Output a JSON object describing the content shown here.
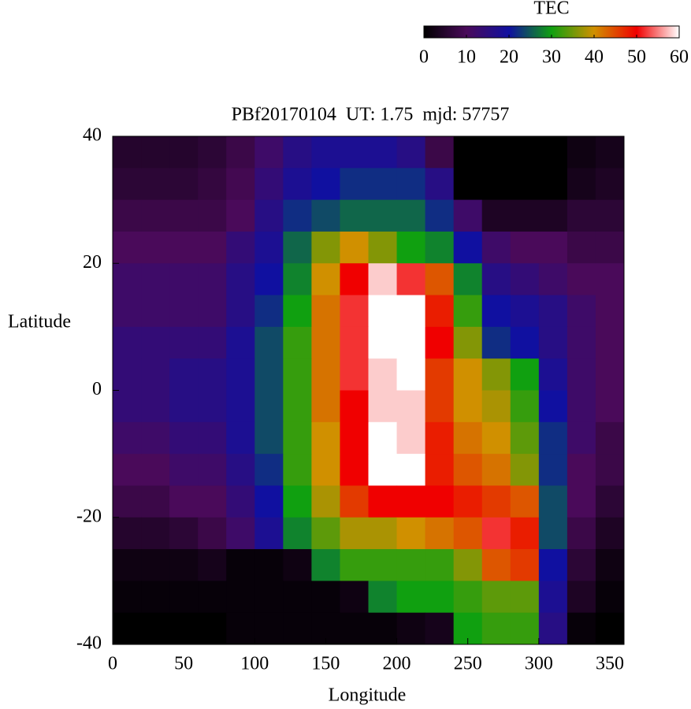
{
  "chart_data": {
    "type": "heatmap",
    "title": "PBf20170104  UT: 1.75  mjd: 57757",
    "x_label": "Longitude",
    "y_label": "Latitude",
    "colorbar_label": "TEC",
    "xlim": [
      0,
      360
    ],
    "xticks": [
      0,
      50,
      100,
      150,
      200,
      250,
      300,
      350
    ],
    "ylim": [
      -40,
      40
    ],
    "yticks": [
      -40,
      -20,
      0,
      20,
      40
    ],
    "zlim": [
      0,
      60
    ],
    "zticks": [
      0,
      10,
      20,
      30,
      40,
      50,
      60
    ],
    "colormap": [
      "#000000",
      "#4a0a5a",
      "#1010a0",
      "#10a010",
      "#d09000",
      "#f00000",
      "#ffffff"
    ],
    "x": [
      10,
      30,
      50,
      70,
      90,
      110,
      130,
      150,
      170,
      190,
      210,
      230,
      250,
      270,
      290,
      310,
      330,
      350
    ],
    "y": [
      37.5,
      32.5,
      27.5,
      22.5,
      17.5,
      12.5,
      7.5,
      2.5,
      -2.5,
      -7.5,
      -12.5,
      -17.5,
      -22.5,
      -27.5,
      -32.5,
      -37.5
    ],
    "z": [
      [
        5,
        5,
        5,
        6,
        8,
        12,
        16,
        18,
        18,
        18,
        16,
        8,
        0,
        0,
        0,
        0,
        2,
        3
      ],
      [
        6,
        6,
        6,
        7,
        9,
        14,
        18,
        20,
        22,
        22,
        22,
        16,
        0,
        0,
        0,
        0,
        3,
        4
      ],
      [
        8,
        8,
        8,
        8,
        10,
        16,
        22,
        24,
        26,
        26,
        26,
        22,
        12,
        4,
        4,
        4,
        6,
        6
      ],
      [
        10,
        10,
        10,
        10,
        14,
        18,
        26,
        36,
        40,
        36,
        30,
        28,
        20,
        12,
        10,
        10,
        8,
        8
      ],
      [
        12,
        12,
        12,
        12,
        16,
        20,
        28,
        40,
        50,
        58,
        52,
        44,
        28,
        16,
        14,
        12,
        10,
        10
      ],
      [
        12,
        12,
        12,
        12,
        16,
        22,
        30,
        42,
        52,
        60,
        60,
        48,
        32,
        20,
        18,
        16,
        12,
        10
      ],
      [
        14,
        14,
        14,
        14,
        18,
        24,
        32,
        42,
        52,
        60,
        60,
        50,
        36,
        22,
        20,
        16,
        12,
        10
      ],
      [
        14,
        14,
        16,
        16,
        18,
        24,
        32,
        42,
        52,
        58,
        60,
        46,
        40,
        36,
        30,
        18,
        12,
        10
      ],
      [
        14,
        14,
        16,
        16,
        18,
        24,
        32,
        42,
        50,
        58,
        58,
        46,
        40,
        38,
        32,
        20,
        12,
        10
      ],
      [
        12,
        12,
        14,
        14,
        18,
        24,
        32,
        40,
        50,
        60,
        58,
        48,
        42,
        40,
        34,
        22,
        12,
        8
      ],
      [
        10,
        10,
        12,
        12,
        16,
        22,
        32,
        40,
        50,
        60,
        60,
        48,
        44,
        42,
        36,
        22,
        10,
        8
      ],
      [
        8,
        8,
        10,
        10,
        14,
        20,
        30,
        38,
        46,
        50,
        50,
        50,
        48,
        46,
        44,
        24,
        10,
        6
      ],
      [
        5,
        5,
        6,
        8,
        12,
        18,
        28,
        34,
        38,
        38,
        40,
        42,
        44,
        52,
        48,
        24,
        8,
        4
      ],
      [
        2,
        2,
        2,
        3,
        1,
        1,
        2,
        28,
        32,
        32,
        32,
        32,
        36,
        44,
        46,
        20,
        6,
        2
      ],
      [
        1,
        1,
        1,
        1,
        1,
        1,
        1,
        1,
        2,
        28,
        30,
        30,
        32,
        34,
        34,
        18,
        4,
        1
      ],
      [
        0,
        0,
        0,
        0,
        1,
        1,
        1,
        1,
        1,
        1,
        2,
        3,
        30,
        32,
        32,
        16,
        1,
        0
      ]
    ]
  }
}
